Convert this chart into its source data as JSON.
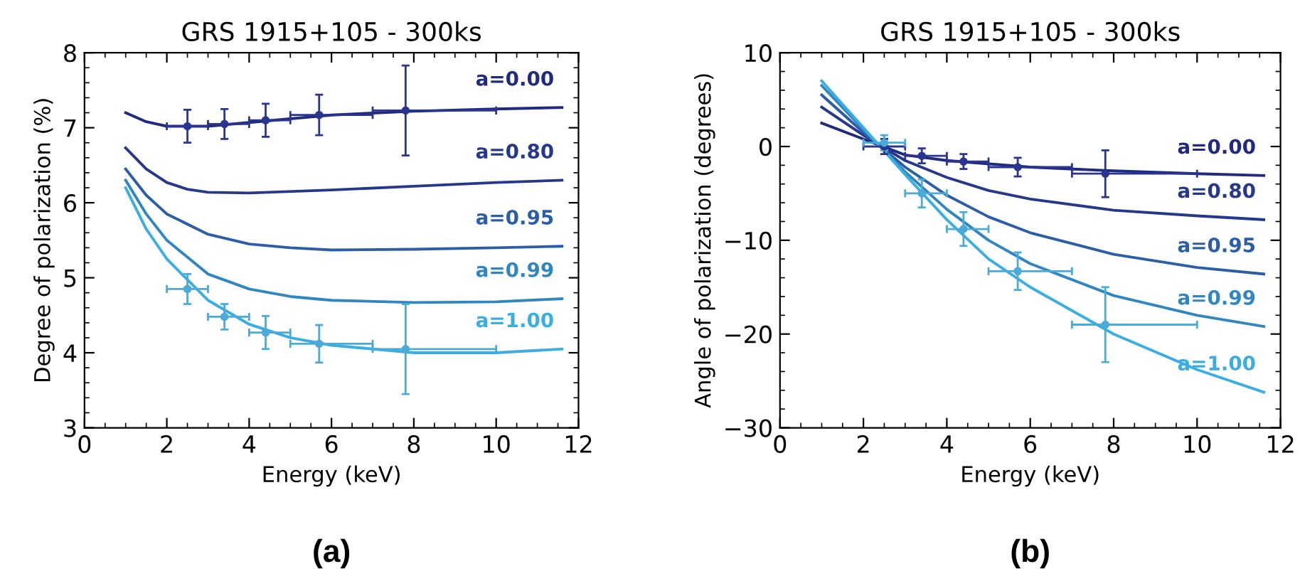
{
  "chart_data": [
    {
      "type": "line",
      "title": "GRS 1915+105 - 300ks",
      "xlabel": "Energy (keV)",
      "ylabel": "Degree of polarization (%)",
      "xlim": [
        0,
        12
      ],
      "xticks": [
        0,
        2,
        4,
        6,
        8,
        10,
        12
      ],
      "ylim": [
        3,
        8
      ],
      "yticks": [
        3,
        4,
        5,
        6,
        7,
        8
      ],
      "grid": false,
      "legend": false,
      "annotations": [
        "(a)"
      ],
      "series": [
        {
          "name": "a=0.00",
          "color": "#1f2a80",
          "x": [
            1,
            1.5,
            2,
            3,
            4,
            5,
            6,
            8,
            10,
            11.6
          ],
          "values": [
            7.2,
            7.08,
            7.02,
            7.02,
            7.07,
            7.12,
            7.17,
            7.22,
            7.25,
            7.27
          ]
        },
        {
          "name": "a=0.80",
          "color": "#26388c",
          "x": [
            1,
            1.5,
            2,
            2.5,
            3,
            4,
            6,
            8,
            10,
            11.6
          ],
          "values": [
            6.73,
            6.45,
            6.27,
            6.18,
            6.14,
            6.13,
            6.17,
            6.22,
            6.27,
            6.3
          ]
        },
        {
          "name": "a=0.95",
          "color": "#2b5ea6",
          "x": [
            1,
            1.5,
            2,
            3,
            4,
            5,
            6,
            8,
            10,
            11.6
          ],
          "values": [
            6.45,
            6.1,
            5.85,
            5.58,
            5.45,
            5.4,
            5.37,
            5.38,
            5.4,
            5.42
          ]
        },
        {
          "name": "a=0.99",
          "color": "#2f86c0",
          "x": [
            1,
            1.5,
            2,
            3,
            4,
            5,
            6,
            8,
            10,
            11.6
          ],
          "values": [
            6.3,
            5.85,
            5.5,
            5.05,
            4.85,
            4.75,
            4.7,
            4.67,
            4.68,
            4.72
          ]
        },
        {
          "name": "a=1.00",
          "color": "#3aaee0",
          "x": [
            1,
            1.5,
            2,
            3,
            4,
            5,
            6,
            8,
            10,
            11.6
          ],
          "values": [
            6.2,
            5.65,
            5.25,
            4.7,
            4.38,
            4.2,
            4.1,
            4.0,
            4.0,
            4.05
          ]
        },
        {
          "type": "scatter",
          "marker": "circle",
          "color": "#2a3590",
          "x": [
            2.5,
            3.4,
            4.4,
            5.7,
            7.8
          ],
          "values": [
            7.02,
            7.05,
            7.1,
            7.17,
            7.23
          ],
          "errors": [
            0.22,
            0.2,
            0.22,
            0.27,
            0.6
          ],
          "xerrors": [
            [
              2,
              3
            ],
            [
              3,
              4
            ],
            [
              4,
              5
            ],
            [
              5,
              7
            ],
            [
              7,
              10
            ]
          ]
        },
        {
          "type": "scatter",
          "marker": "circle",
          "color": "#4aaad8",
          "x": [
            2.5,
            3.4,
            4.4,
            5.7,
            7.8
          ],
          "values": [
            4.85,
            4.48,
            4.27,
            4.12,
            4.05
          ],
          "errors": [
            0.2,
            0.17,
            0.22,
            0.25,
            0.6
          ],
          "xerrors": [
            [
              2,
              3
            ],
            [
              3,
              4
            ],
            [
              4,
              5
            ],
            [
              5,
              7
            ],
            [
              7,
              10
            ]
          ]
        }
      ]
    },
    {
      "type": "line",
      "title": "GRS 1915+105 - 300ks",
      "xlabel": "Energy (keV)",
      "ylabel": "Angle of polarization (degrees)",
      "xlim": [
        0,
        12
      ],
      "xticks": [
        0,
        2,
        4,
        6,
        8,
        10,
        12
      ],
      "ylim": [
        -30,
        10
      ],
      "yticks": [
        -30,
        -20,
        -10,
        0,
        10
      ],
      "grid": false,
      "legend": false,
      "annotations": [
        "(b)"
      ],
      "series": [
        {
          "name": "a=0.00",
          "color": "#1f2a80",
          "x": [
            1,
            2,
            3,
            4,
            6,
            8,
            10,
            11.6
          ],
          "values": [
            2.5,
            0.8,
            -0.9,
            -1.5,
            -2.2,
            -2.6,
            -2.9,
            -3.1
          ]
        },
        {
          "name": "a=0.80",
          "color": "#26388c",
          "x": [
            1,
            2,
            3,
            4,
            5,
            6,
            8,
            10,
            11.6
          ],
          "values": [
            4.2,
            1.2,
            -1.5,
            -3.3,
            -4.7,
            -5.6,
            -6.8,
            -7.4,
            -7.8
          ]
        },
        {
          "name": "a=0.95",
          "color": "#2b5ea6",
          "x": [
            1,
            2,
            3,
            4,
            5,
            6,
            8,
            10,
            11.6
          ],
          "values": [
            5.5,
            1.5,
            -2.2,
            -5.2,
            -7.5,
            -9.2,
            -11.5,
            -12.9,
            -13.6
          ]
        },
        {
          "name": "a=0.99",
          "color": "#2f86c0",
          "x": [
            1,
            2,
            3,
            4,
            5,
            6,
            8,
            10,
            11.6
          ],
          "values": [
            6.5,
            1.8,
            -2.7,
            -6.7,
            -10,
            -12.5,
            -15.9,
            -18,
            -19.2
          ]
        },
        {
          "name": "a=1.00",
          "color": "#3aaee0",
          "x": [
            1,
            2,
            3,
            4,
            5,
            6,
            8,
            10,
            11.6
          ],
          "values": [
            7.0,
            2.0,
            -3.0,
            -7.8,
            -12,
            -15,
            -20,
            -23.8,
            -26.2
          ]
        },
        {
          "type": "scatter",
          "marker": "circle",
          "color": "#2a3590",
          "x": [
            2.5,
            3.4,
            4.4,
            5.7,
            7.8
          ],
          "values": [
            0.0,
            -1.0,
            -1.6,
            -2.2,
            -2.9
          ],
          "errors": [
            0.8,
            0.8,
            0.8,
            1.0,
            2.5
          ],
          "xerrors": [
            [
              2,
              3
            ],
            [
              3,
              4
            ],
            [
              4,
              5
            ],
            [
              5,
              7
            ],
            [
              7,
              10
            ]
          ]
        },
        {
          "type": "scatter",
          "marker": "circle",
          "color": "#4aaad8",
          "x": [
            2.5,
            3.4,
            4.4,
            5.7,
            7.8
          ],
          "values": [
            0.4,
            -5.0,
            -8.8,
            -13.3,
            -19
          ],
          "errors": [
            0.8,
            1.5,
            1.8,
            2.0,
            4.0
          ],
          "xerrors": [
            [
              2,
              3
            ],
            [
              3,
              4
            ],
            [
              4,
              5
            ],
            [
              5,
              7
            ],
            [
              7,
              10
            ]
          ]
        }
      ]
    }
  ]
}
